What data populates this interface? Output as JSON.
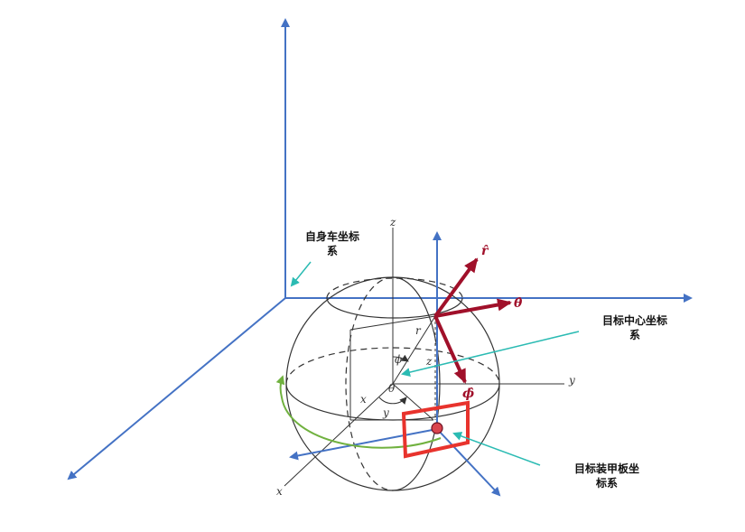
{
  "labels": {
    "vehicle_frame": "自身车坐标\n系",
    "target_center_frame": "目标中心坐标\n系",
    "armor_frame": "目标装甲板坐\n标系"
  },
  "sphere_axes": {
    "z": "z",
    "y": "y",
    "x": "x"
  },
  "symbols": {
    "phi": "ϕ",
    "theta": "θ",
    "r": "r",
    "z_small": "z",
    "x_small": "x",
    "y_small": "y",
    "r_hat": "r̂",
    "theta_hat": "θ̂",
    "phi_hat": "ϕ̂"
  },
  "colors": {
    "blue_axis": "#4472c4",
    "teal_pointer": "#2bbbb3",
    "dark_red_vector": "#a0102a",
    "red_plate": "#e8332d",
    "green_arc": "#70b13f",
    "sphere_line": "#333333"
  }
}
